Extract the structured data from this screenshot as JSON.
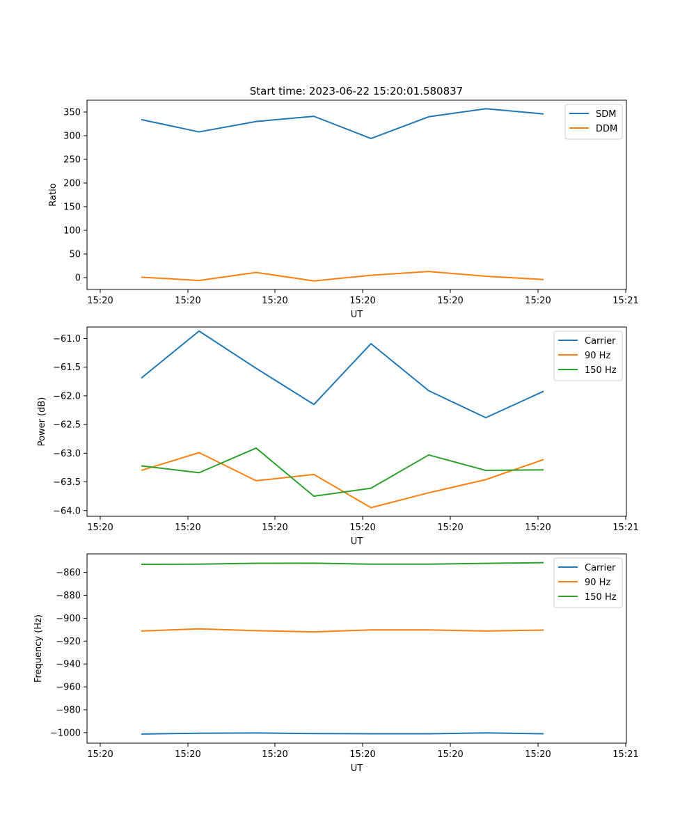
{
  "figure": {
    "title": "Start time: 2023-06-22 15:20:01.580837"
  },
  "colors": {
    "blue": "#1f77b4",
    "orange": "#ff7f0e",
    "green": "#2ca02c"
  },
  "chart_data": [
    {
      "type": "line",
      "title": "Start time: 2023-06-22 15:20:01.580837",
      "xlabel": "UT",
      "ylabel": "Ratio",
      "ylim": [
        -25,
        375
      ],
      "yticks": [
        0,
        50,
        100,
        150,
        200,
        250,
        300,
        350
      ],
      "xtick_labels": [
        "15:20",
        "15:20",
        "15:20",
        "15:20",
        "15:20",
        "15:20",
        "15:21"
      ],
      "grid": false,
      "legend_position": "upper right",
      "series": [
        {
          "name": "SDM",
          "color": "#1f77b4",
          "values": [
            334,
            308,
            330,
            341,
            294,
            340,
            357,
            346
          ]
        },
        {
          "name": "DDM",
          "color": "#ff7f0e",
          "values": [
            1,
            -6,
            11,
            -7,
            5,
            13,
            3,
            -4
          ]
        }
      ]
    },
    {
      "type": "line",
      "title": "",
      "xlabel": "UT",
      "ylabel": "Power (dB)",
      "ylim": [
        -64.1,
        -60.8
      ],
      "yticks": [
        -64.0,
        -63.5,
        -63.0,
        -62.5,
        -62.0,
        -61.5,
        -61.0
      ],
      "xtick_labels": [
        "15:20",
        "15:20",
        "15:20",
        "15:20",
        "15:20",
        "15:20",
        "15:21"
      ],
      "grid": false,
      "legend_position": "upper right",
      "series": [
        {
          "name": "Carrier",
          "color": "#1f77b4",
          "values": [
            -61.69,
            -60.87,
            -61.52,
            -62.15,
            -61.09,
            -61.91,
            -62.38,
            -61.92
          ]
        },
        {
          "name": "90 Hz",
          "color": "#ff7f0e",
          "values": [
            -63.3,
            -62.99,
            -63.48,
            -63.37,
            -63.95,
            -63.69,
            -63.46,
            -63.11
          ]
        },
        {
          "name": "150 Hz",
          "color": "#2ca02c",
          "values": [
            -63.22,
            -63.34,
            -62.91,
            -63.75,
            -63.61,
            -63.03,
            -63.3,
            -63.29
          ]
        }
      ]
    },
    {
      "type": "line",
      "title": "",
      "xlabel": "UT",
      "ylabel": "Frequency (Hz)",
      "ylim": [
        -1009.2,
        -843.8
      ],
      "yticks": [
        -1000,
        -980,
        -960,
        -940,
        -920,
        -900,
        -880,
        -860
      ],
      "xtick_labels": [
        "15:20",
        "15:20",
        "15:20",
        "15:20",
        "15:20",
        "15:20",
        "15:21"
      ],
      "grid": false,
      "legend_position": "upper right",
      "series": [
        {
          "name": "Carrier",
          "color": "#1f77b4",
          "values": [
            -1001.2,
            -1000.5,
            -1000.3,
            -1000.8,
            -1001.0,
            -1001.0,
            -1000.2,
            -1001.0
          ]
        },
        {
          "name": "90 Hz",
          "color": "#ff7f0e",
          "values": [
            -911.2,
            -909.3,
            -910.9,
            -912.0,
            -910.2,
            -910.2,
            -911.2,
            -910.4
          ]
        },
        {
          "name": "150 Hz",
          "color": "#2ca02c",
          "values": [
            -852.9,
            -852.8,
            -852.0,
            -851.9,
            -852.8,
            -852.8,
            -852.1,
            -851.5
          ]
        }
      ]
    }
  ]
}
